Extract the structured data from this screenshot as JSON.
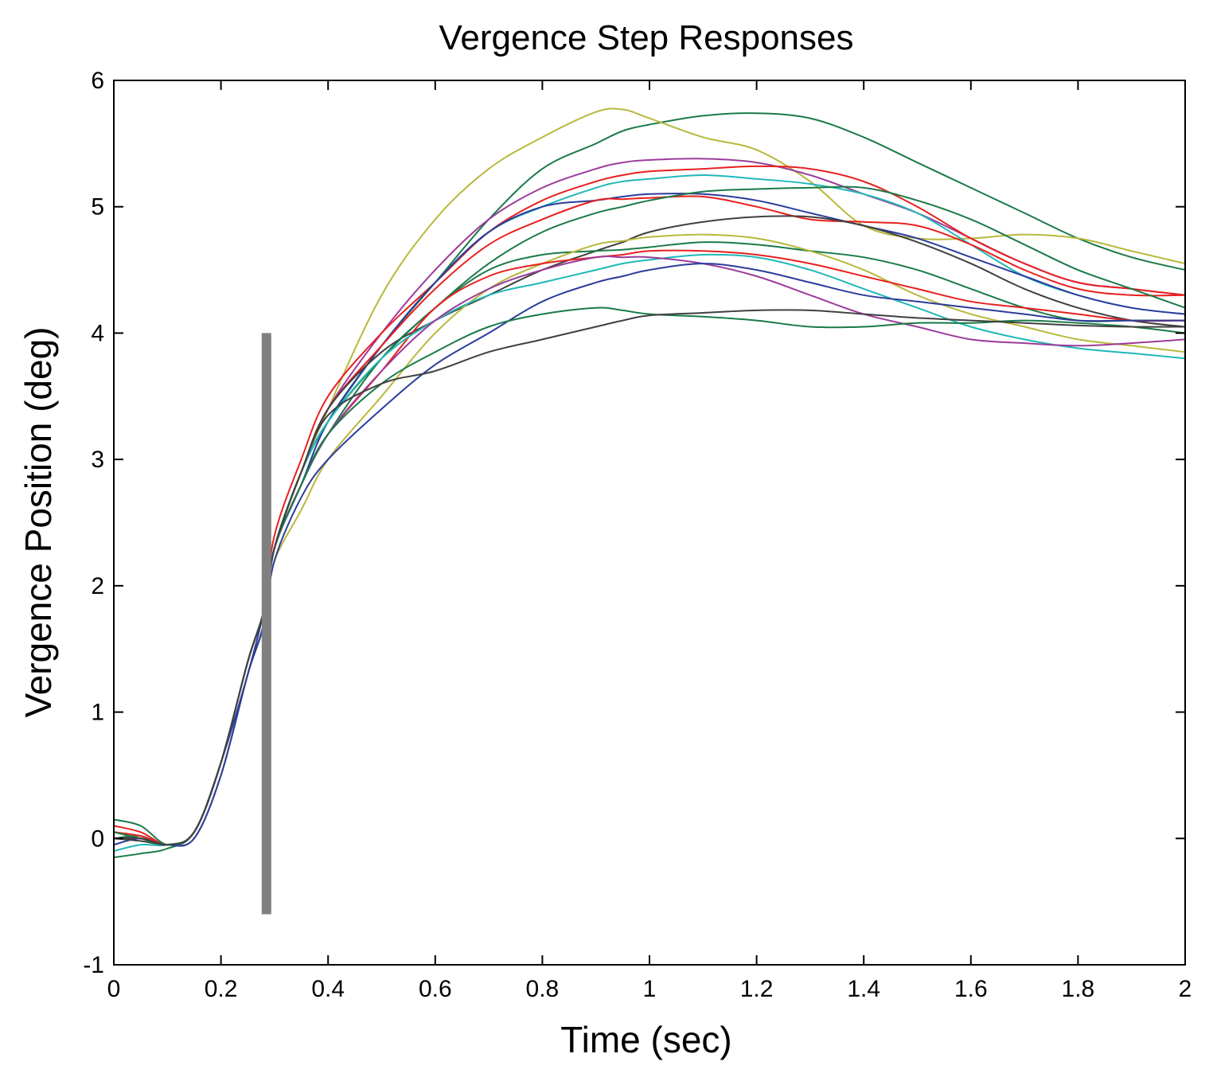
{
  "chart_data": {
    "type": "line",
    "title": "Vergence Step Responses",
    "xlabel": "Time (sec)",
    "ylabel": "Vergence Position (deg)",
    "xlim": [
      0,
      2
    ],
    "ylim": [
      -1,
      6
    ],
    "xticks": [
      0,
      0.2,
      0.4,
      0.6,
      0.8,
      1,
      1.2,
      1.4,
      1.6,
      1.8,
      2
    ],
    "xtick_labels": [
      "0",
      "0.2",
      "0.4",
      "0.6",
      "0.8",
      "1",
      "1.2",
      "1.4",
      "1.6",
      "1.8",
      "2"
    ],
    "yticks": [
      -1,
      0,
      1,
      2,
      3,
      4,
      5,
      6
    ],
    "ytick_labels": [
      "-1",
      "0",
      "1",
      "2",
      "3",
      "4",
      "5",
      "6"
    ],
    "grid": false,
    "marker_bar": {
      "x": 0.285,
      "y_range": [
        -0.6,
        4.0
      ],
      "color": "#808080"
    },
    "x": [
      0,
      0.05,
      0.1,
      0.15,
      0.2,
      0.25,
      0.28,
      0.3,
      0.35,
      0.4,
      0.5,
      0.6,
      0.7,
      0.8,
      0.9,
      0.95,
      1.0,
      1.1,
      1.2,
      1.3,
      1.4,
      1.5,
      1.6,
      1.7,
      1.8,
      1.9,
      2.0
    ],
    "series": [
      {
        "name": "trace-1",
        "color": "#1a7a48",
        "values": [
          0.0,
          0.02,
          -0.05,
          0.05,
          0.6,
          1.4,
          1.8,
          2.3,
          2.9,
          3.3,
          3.9,
          4.4,
          4.9,
          5.3,
          5.5,
          5.6,
          5.65,
          5.72,
          5.74,
          5.7,
          5.55,
          5.35,
          5.15,
          4.95,
          4.75,
          4.6,
          4.5
        ]
      },
      {
        "name": "trace-2",
        "color": "#b8b83c",
        "values": [
          0.0,
          0.0,
          -0.05,
          0.05,
          0.6,
          1.4,
          1.8,
          2.3,
          2.9,
          3.4,
          4.3,
          4.9,
          5.3,
          5.55,
          5.75,
          5.77,
          5.7,
          5.55,
          5.45,
          5.2,
          4.85,
          4.75,
          4.75,
          4.78,
          4.75,
          4.65,
          4.55
        ]
      },
      {
        "name": "trace-3",
        "color": "#9b3c9b",
        "values": [
          0.0,
          0.0,
          -0.05,
          0.05,
          0.6,
          1.4,
          1.8,
          2.3,
          2.9,
          3.4,
          4.0,
          4.5,
          4.9,
          5.15,
          5.3,
          5.35,
          5.37,
          5.38,
          5.35,
          5.25,
          5.1,
          4.95,
          4.75,
          4.55,
          4.4,
          4.35,
          4.3
        ]
      },
      {
        "name": "trace-4",
        "color": "#e82020",
        "values": [
          0.1,
          0.05,
          -0.05,
          0.05,
          0.6,
          1.4,
          1.8,
          2.4,
          3.0,
          3.5,
          4.0,
          4.4,
          4.8,
          5.05,
          5.2,
          5.25,
          5.28,
          5.3,
          5.32,
          5.3,
          5.2,
          5.0,
          4.75,
          4.55,
          4.4,
          4.35,
          4.3
        ]
      },
      {
        "name": "trace-5",
        "color": "#20b8b8",
        "values": [
          0.0,
          0.0,
          -0.05,
          0.05,
          0.6,
          1.4,
          1.8,
          2.3,
          2.8,
          3.3,
          3.9,
          4.4,
          4.8,
          5.0,
          5.15,
          5.2,
          5.22,
          5.25,
          5.22,
          5.18,
          5.1,
          4.95,
          4.7,
          4.45,
          4.3,
          4.2,
          4.15
        ]
      },
      {
        "name": "trace-6",
        "color": "#2c3c9c",
        "values": [
          -0.05,
          0.0,
          -0.05,
          0.05,
          0.6,
          1.3,
          1.8,
          2.3,
          2.8,
          3.3,
          3.9,
          4.4,
          4.8,
          5.0,
          5.05,
          5.08,
          5.1,
          5.1,
          5.05,
          4.95,
          4.85,
          4.75,
          4.6,
          4.45,
          4.3,
          4.2,
          4.15
        ]
      },
      {
        "name": "trace-7",
        "color": "#e82020",
        "values": [
          0.05,
          0.02,
          -0.05,
          0.05,
          0.6,
          1.4,
          1.8,
          2.3,
          2.9,
          3.4,
          3.9,
          4.35,
          4.7,
          4.9,
          5.05,
          5.06,
          5.07,
          5.08,
          5.0,
          4.9,
          4.88,
          4.85,
          4.7,
          4.5,
          4.35,
          4.3,
          4.3
        ]
      },
      {
        "name": "trace-8",
        "color": "#1a7a48",
        "values": [
          -0.15,
          -0.12,
          -0.08,
          0.05,
          0.6,
          1.4,
          1.8,
          2.3,
          2.8,
          3.2,
          3.8,
          4.2,
          4.55,
          4.8,
          4.95,
          5.0,
          5.05,
          5.12,
          5.14,
          5.15,
          5.15,
          5.05,
          4.9,
          4.7,
          4.5,
          4.35,
          4.2
        ]
      },
      {
        "name": "trace-9",
        "color": "#404040",
        "values": [
          0.0,
          -0.02,
          -0.05,
          0.0,
          0.5,
          1.3,
          1.7,
          2.3,
          2.9,
          3.4,
          3.85,
          4.1,
          4.3,
          4.5,
          4.65,
          4.72,
          4.8,
          4.88,
          4.92,
          4.92,
          4.85,
          4.72,
          4.55,
          4.35,
          4.2,
          4.1,
          4.05
        ]
      },
      {
        "name": "trace-10",
        "color": "#1a7a48",
        "values": [
          0.15,
          0.1,
          -0.05,
          0.05,
          0.6,
          1.4,
          1.8,
          2.3,
          2.9,
          3.3,
          3.8,
          4.2,
          4.5,
          4.62,
          4.65,
          4.66,
          4.68,
          4.72,
          4.7,
          4.65,
          4.6,
          4.5,
          4.35,
          4.2,
          4.1,
          4.1,
          4.1
        ]
      },
      {
        "name": "trace-11",
        "color": "#b8b83c",
        "values": [
          0.05,
          0.0,
          -0.05,
          0.05,
          0.6,
          1.4,
          1.8,
          2.2,
          2.6,
          3.0,
          3.5,
          4.0,
          4.35,
          4.55,
          4.7,
          4.73,
          4.76,
          4.78,
          4.75,
          4.65,
          4.5,
          4.3,
          4.15,
          4.05,
          3.95,
          3.9,
          3.85
        ]
      },
      {
        "name": "trace-12",
        "color": "#e82020",
        "values": [
          0.0,
          0.0,
          -0.05,
          0.05,
          0.6,
          1.4,
          1.8,
          2.3,
          2.8,
          3.2,
          3.7,
          4.2,
          4.45,
          4.55,
          4.6,
          4.62,
          4.65,
          4.65,
          4.62,
          4.55,
          4.45,
          4.35,
          4.25,
          4.2,
          4.15,
          4.1,
          4.1
        ]
      },
      {
        "name": "trace-13",
        "color": "#20b8b8",
        "values": [
          -0.1,
          -0.05,
          -0.05,
          0.05,
          0.6,
          1.4,
          1.8,
          2.3,
          2.9,
          3.3,
          3.8,
          4.1,
          4.3,
          4.4,
          4.5,
          4.55,
          4.58,
          4.62,
          4.6,
          4.5,
          4.35,
          4.2,
          4.05,
          3.95,
          3.88,
          3.84,
          3.8
        ]
      },
      {
        "name": "trace-14",
        "color": "#9b3c9b",
        "values": [
          0.0,
          0.0,
          -0.05,
          0.05,
          0.6,
          1.4,
          1.8,
          2.3,
          2.8,
          3.2,
          3.7,
          4.1,
          4.35,
          4.5,
          4.6,
          4.6,
          4.6,
          4.55,
          4.45,
          4.3,
          4.15,
          4.05,
          3.95,
          3.92,
          3.9,
          3.92,
          3.95
        ]
      },
      {
        "name": "trace-15",
        "color": "#2c3c9c",
        "values": [
          0.0,
          0.0,
          -0.05,
          0.0,
          0.5,
          1.3,
          1.7,
          2.2,
          2.7,
          3.0,
          3.4,
          3.75,
          4.0,
          4.25,
          4.4,
          4.45,
          4.5,
          4.55,
          4.5,
          4.4,
          4.3,
          4.25,
          4.2,
          4.15,
          4.1,
          4.1,
          4.1
        ]
      },
      {
        "name": "trace-16",
        "color": "#1a7a48",
        "values": [
          0.05,
          0.0,
          -0.05,
          0.05,
          0.6,
          1.4,
          1.8,
          2.3,
          2.8,
          3.2,
          3.6,
          3.85,
          4.05,
          4.15,
          4.2,
          4.18,
          4.15,
          4.13,
          4.1,
          4.05,
          4.05,
          4.08,
          4.08,
          4.1,
          4.08,
          4.05,
          4.0
        ]
      },
      {
        "name": "trace-17",
        "color": "#404040",
        "values": [
          0.0,
          0.0,
          -0.05,
          0.05,
          0.6,
          1.4,
          1.8,
          2.3,
          2.9,
          3.35,
          3.6,
          3.7,
          3.85,
          3.95,
          4.05,
          4.1,
          4.14,
          4.16,
          4.18,
          4.18,
          4.15,
          4.12,
          4.1,
          4.08,
          4.06,
          4.05,
          4.05
        ]
      }
    ]
  }
}
